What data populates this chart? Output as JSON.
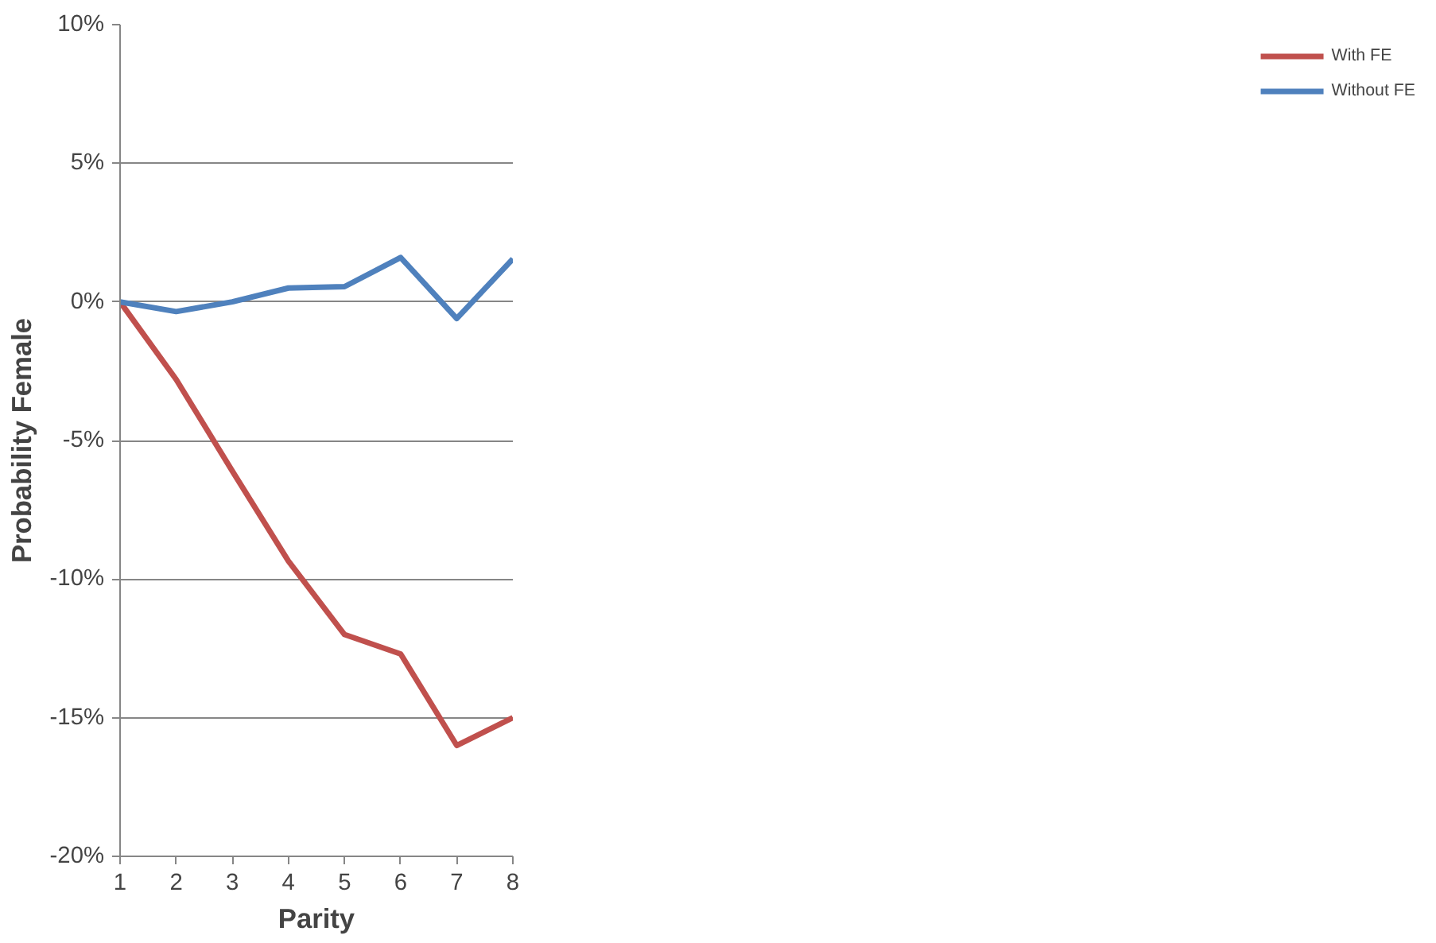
{
  "chart_data": {
    "type": "line",
    "xlabel": "Parity",
    "ylabel": "Probability Female",
    "x": [
      1,
      2,
      3,
      4,
      5,
      6,
      7,
      8
    ],
    "series": [
      {
        "name": "With FE",
        "color": "#c0504d",
        "values": [
          0,
          -2.8,
          -6.1,
          -9.35,
          -12.0,
          -12.7,
          -16.0,
          -15.0
        ]
      },
      {
        "name": "Without FE",
        "color": "#4f81bd",
        "values": [
          0,
          -0.35,
          0,
          0.5,
          0.55,
          1.6,
          -0.6,
          1.55
        ]
      }
    ],
    "xlim": [
      1,
      8
    ],
    "xticks": [
      1,
      2,
      3,
      4,
      5,
      6,
      7,
      8
    ],
    "ylim": [
      -20,
      10
    ],
    "yticks": [
      {
        "value": -20,
        "label": "-20%"
      },
      {
        "value": -15,
        "label": "-15%"
      },
      {
        "value": -10,
        "label": "-10%"
      },
      {
        "value": -5,
        "label": "-5%"
      },
      {
        "value": 0,
        "label": "0%"
      },
      {
        "value": 5,
        "label": "5%"
      },
      {
        "value": 10,
        "label": "10%"
      }
    ],
    "grid": "y",
    "legend": "right",
    "marker": "none",
    "line_style": "solid"
  }
}
